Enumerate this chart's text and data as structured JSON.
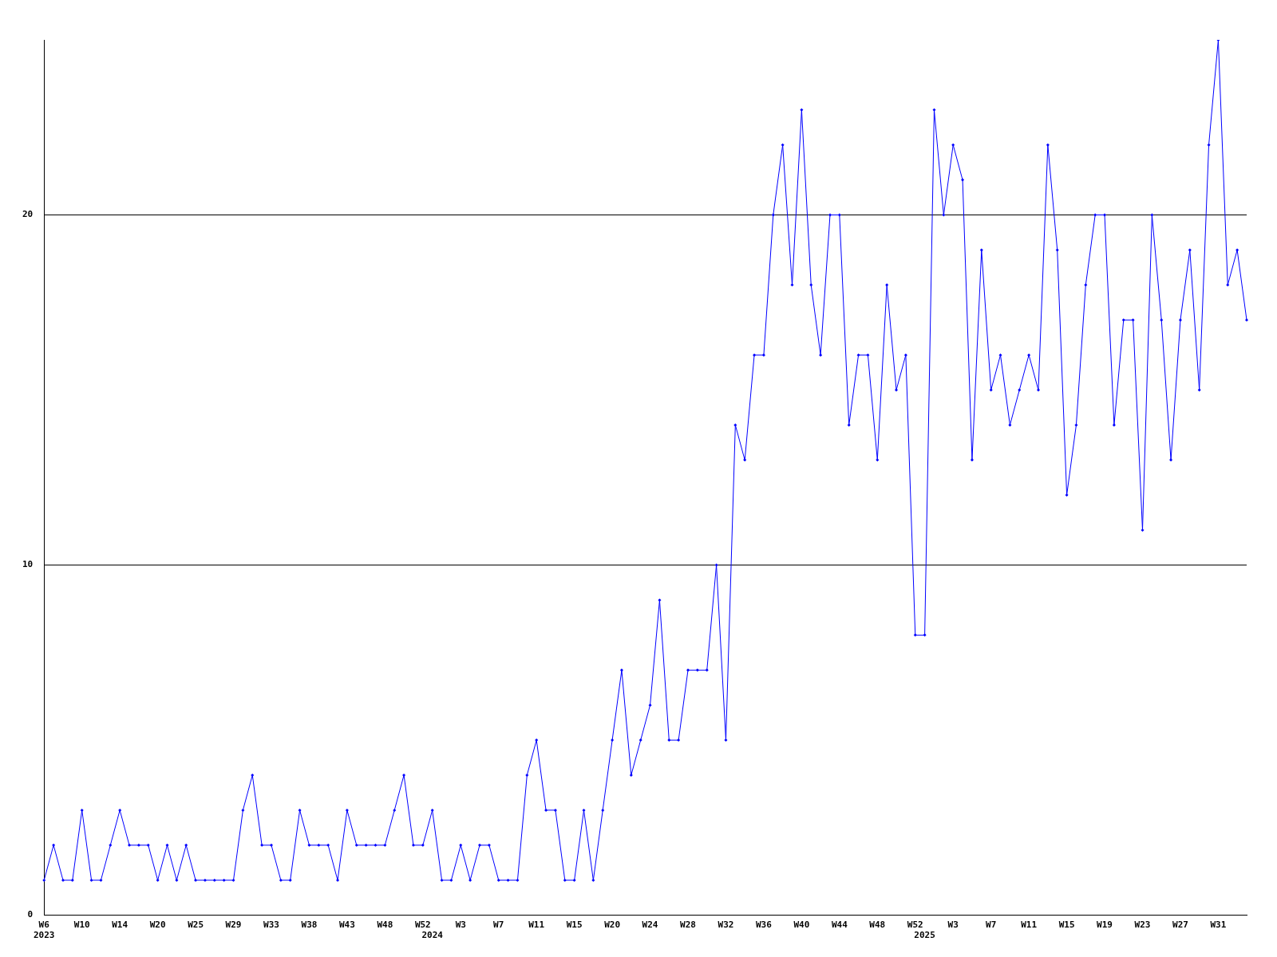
{
  "chart_data": {
    "type": "line",
    "categories": [
      "W6\n2023",
      null,
      null,
      null,
      "W10",
      null,
      null,
      null,
      "W14",
      null,
      null,
      null,
      "W20",
      null,
      null,
      null,
      "W25",
      null,
      null,
      null,
      "W29",
      null,
      null,
      null,
      "W33",
      null,
      null,
      null,
      "W38",
      null,
      null,
      null,
      "W43",
      null,
      null,
      null,
      "W48",
      null,
      null,
      null,
      "W52",
      "\n2024",
      null,
      null,
      "W3",
      null,
      null,
      null,
      "W7",
      null,
      null,
      null,
      "W11",
      null,
      null,
      null,
      "W15",
      null,
      null,
      null,
      "W20",
      null,
      null,
      null,
      "W24",
      null,
      null,
      null,
      "W28",
      null,
      null,
      null,
      "W32",
      null,
      null,
      null,
      "W36",
      null,
      null,
      null,
      "W40",
      null,
      null,
      null,
      "W44",
      null,
      null,
      null,
      "W48",
      null,
      null,
      null,
      "W52",
      "\n2025",
      null,
      null,
      "W3",
      null,
      null,
      null,
      "W7",
      null,
      null,
      null,
      "W11",
      null,
      null,
      null,
      "W15",
      null,
      null,
      null,
      "W19",
      null,
      null,
      null,
      "W23",
      null,
      null,
      null,
      "W27",
      null,
      null,
      null,
      "W31",
      null,
      null,
      null
    ],
    "series": [
      {
        "color": "#0000ff",
        "values": [
          1,
          2,
          1,
          1,
          3,
          1,
          1,
          2,
          3,
          2,
          2,
          2,
          1,
          2,
          1,
          2,
          1,
          1,
          1,
          1,
          1,
          3,
          4,
          2,
          2,
          1,
          1,
          3,
          2,
          2,
          2,
          1,
          3,
          2,
          2,
          2,
          2,
          3,
          4,
          2,
          2,
          3,
          1,
          1,
          2,
          1,
          2,
          2,
          1,
          1,
          1,
          4,
          5,
          3,
          3,
          1,
          1,
          3,
          1,
          3,
          5,
          7,
          4,
          5,
          6,
          9,
          5,
          5,
          7,
          7,
          7,
          10,
          5,
          14,
          13,
          16,
          16,
          20,
          22,
          18,
          23,
          18,
          16,
          20,
          20,
          14,
          16,
          16,
          13,
          18,
          15,
          16,
          8,
          8,
          23,
          20,
          22,
          21,
          13,
          19,
          15,
          16,
          14,
          15,
          16,
          15,
          22,
          19,
          12,
          14,
          18,
          20,
          20,
          14,
          17,
          17,
          11,
          20,
          17,
          13,
          17,
          19,
          15,
          22,
          25,
          18,
          19,
          17
        ]
      }
    ],
    "ylim": [
      0,
      25
    ],
    "yticks": [
      0,
      10,
      20
    ],
    "grid": "y",
    "legend": false,
    "marker": "diamond",
    "line_style": "solid"
  }
}
